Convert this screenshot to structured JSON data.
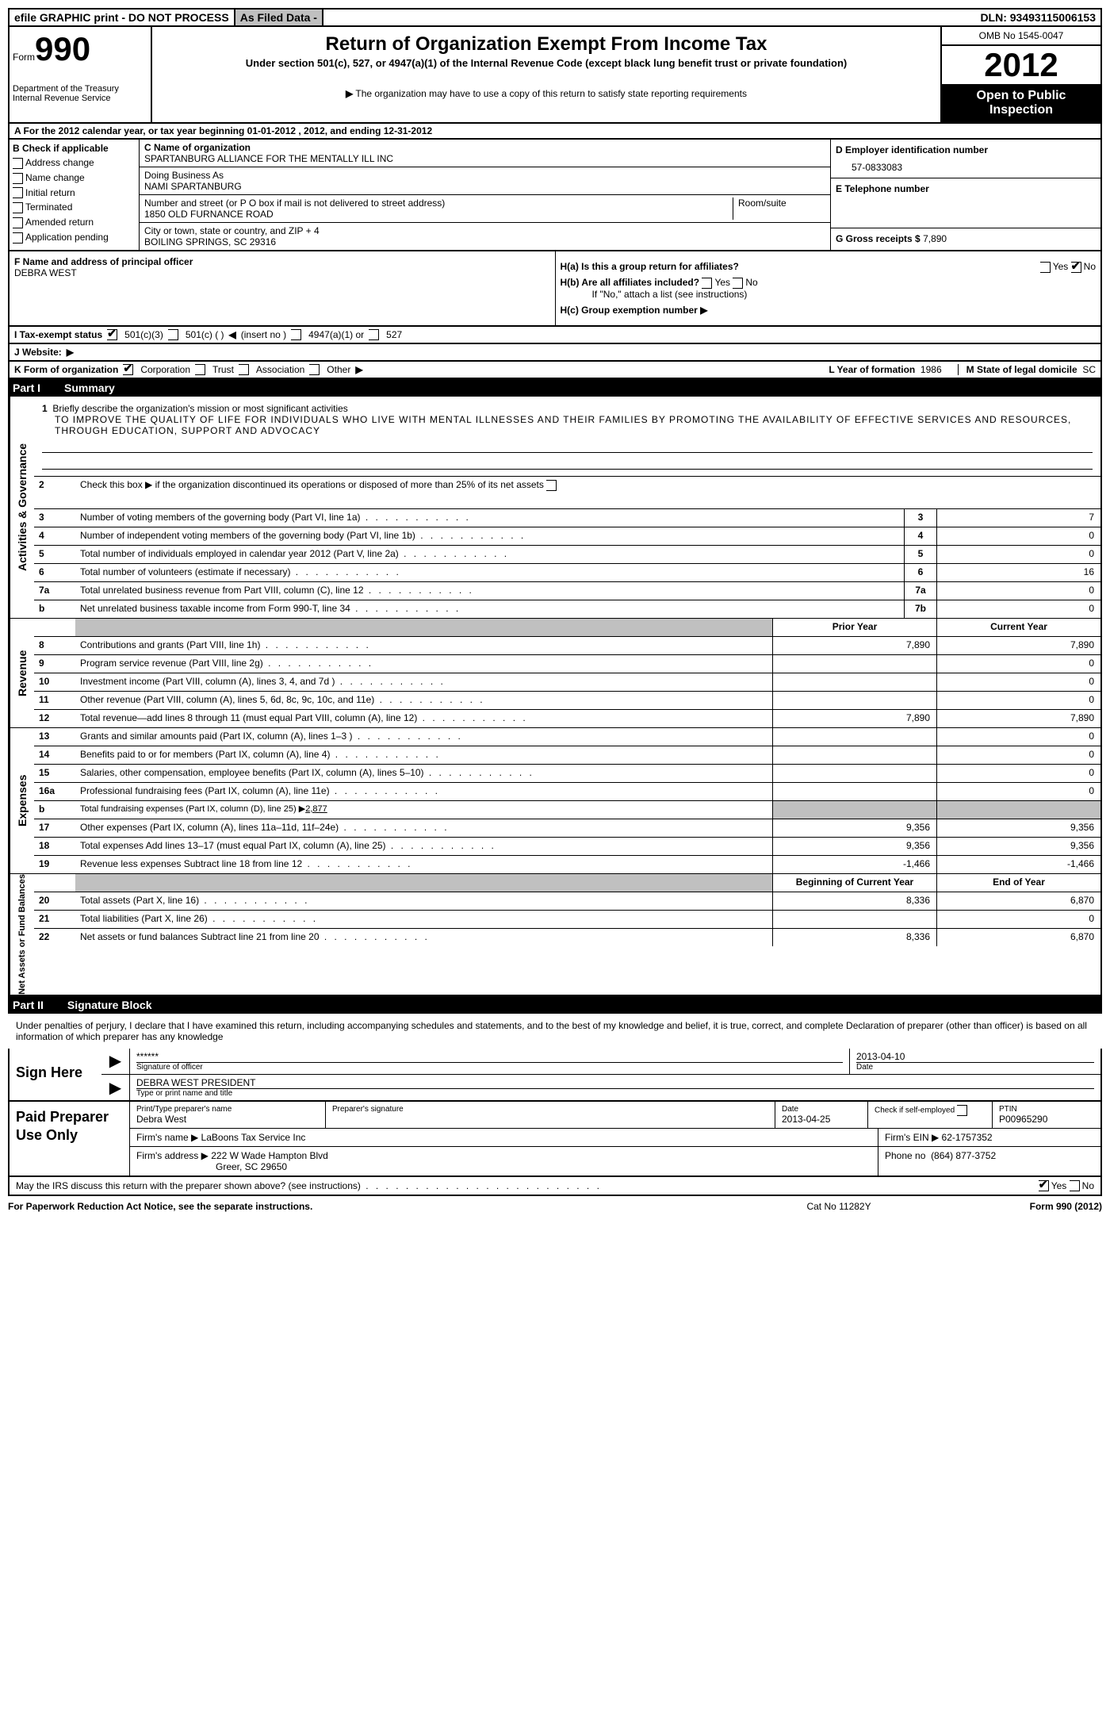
{
  "header": {
    "efile": "efile GRAPHIC print - DO NOT PROCESS",
    "asfiled": "As Filed Data -",
    "dln_label": "DLN:",
    "dln": "93493115006153"
  },
  "form": {
    "label_sm": "Form",
    "num": "990",
    "treasury1": "Department of the Treasury",
    "treasury2": "Internal Revenue Service",
    "title": "Return of Organization Exempt From Income Tax",
    "subtitle": "Under section 501(c), 527, or 4947(a)(1) of the Internal Revenue Code (except black lung benefit trust or private foundation)",
    "notice": "The organization may have to use a copy of this return to satisfy state reporting requirements",
    "omb": "OMB No 1545-0047",
    "year": "2012",
    "open_public": "Open to Public Inspection"
  },
  "line_a": "A  For the 2012 calendar year, or tax year beginning 01-01-2012    , 2012, and ending 12-31-2012",
  "col_b": {
    "label": "B Check if applicable",
    "items": [
      "Address change",
      "Name change",
      "Initial return",
      "Terminated",
      "Amended return",
      "Application pending"
    ]
  },
  "col_c": {
    "name_label": "C Name of organization",
    "name": "SPARTANBURG ALLIANCE FOR THE MENTALLY ILL INC",
    "dba_label": "Doing Business As",
    "dba": "NAMI SPARTANBURG",
    "addr_label": "Number and street (or P O  box if mail is not delivered to street address)",
    "addr": "1850 OLD FURNANCE ROAD",
    "room_label": "Room/suite",
    "city_label": "City or town, state or country, and ZIP + 4",
    "city": "BOILING SPRINGS, SC  29316"
  },
  "col_d": {
    "ein_label": "D Employer identification number",
    "ein": "57-0833083",
    "phone_label": "E Telephone number",
    "gross_label": "G Gross receipts $",
    "gross": "7,890"
  },
  "f": {
    "label": "F   Name and address of principal officer",
    "name": "DEBRA WEST"
  },
  "h": {
    "ha": "H(a)  Is this a group return for affiliates?",
    "hb": "H(b)  Are all affiliates included?",
    "hb_note": "If \"No,\" attach a list  (see instructions)",
    "hc": "H(c)   Group exemption number",
    "yes": "Yes",
    "no": "No"
  },
  "tax_exempt": {
    "label": "I   Tax-exempt status",
    "opt1": "501(c)(3)",
    "opt2": "501(c) (  )",
    "insert": "(insert no )",
    "opt3": "4947(a)(1) or",
    "opt4": "527"
  },
  "website": {
    "label": "J  Website:"
  },
  "kform": {
    "label": "K Form of organization",
    "corp": "Corporation",
    "trust": "Trust",
    "assoc": "Association",
    "other": "Other",
    "year_label": "L Year of formation",
    "year_val": "1986",
    "state_label": "M State of legal domicile",
    "state_val": "SC"
  },
  "part1": {
    "num": "Part I",
    "title": "Summary"
  },
  "mission": {
    "num": "1",
    "label": "Briefly describe the organization's mission or most significant activities",
    "text": "TO IMPROVE THE QUALITY OF LIFE FOR INDIVIDUALS WHO LIVE WITH MENTAL ILLNESSES AND THEIR FAMILIES BY PROMOTING THE AVAILABILITY OF EFFECTIVE SERVICES AND RESOURCES, THROUGH EDUCATION, SUPPORT AND ADVOCACY"
  },
  "line2": {
    "num": "2",
    "text": "Check this box ▶      if the organization discontinued its operations or disposed of more than 25% of its net assets"
  },
  "vert1": "Activities & Governance",
  "vert2": "Revenue",
  "vert3": "Expenses",
  "vert4": "Net Assets or Fund Balances",
  "gov_lines": [
    {
      "num": "3",
      "text": "Number of voting members of the governing body (Part VI, line 1a)",
      "key": "3",
      "val": "7"
    },
    {
      "num": "4",
      "text": "Number of independent voting members of the governing body (Part VI, line 1b)",
      "key": "4",
      "val": "0"
    },
    {
      "num": "5",
      "text": "Total number of individuals employed in calendar year 2012 (Part V, line 2a)",
      "key": "5",
      "val": "0"
    },
    {
      "num": "6",
      "text": "Total number of volunteers (estimate if necessary)",
      "key": "6",
      "val": "16"
    },
    {
      "num": "7a",
      "text": "Total unrelated business revenue from Part VIII, column (C), line 12",
      "key": "7a",
      "val": "0"
    },
    {
      "num": "b",
      "text": "Net unrelated business taxable income from Form 990-T, line 34",
      "key": "7b",
      "val": "0"
    }
  ],
  "col_headers": {
    "prior": "Prior Year",
    "current": "Current Year",
    "begin": "Beginning of Current Year",
    "end": "End of Year"
  },
  "rev_lines": [
    {
      "num": "8",
      "text": "Contributions and grants (Part VIII, line 1h)",
      "v1": "7,890",
      "v2": "7,890"
    },
    {
      "num": "9",
      "text": "Program service revenue (Part VIII, line 2g)",
      "v1": "",
      "v2": "0"
    },
    {
      "num": "10",
      "text": "Investment income (Part VIII, column (A), lines 3, 4, and 7d )",
      "v1": "",
      "v2": "0"
    },
    {
      "num": "11",
      "text": "Other revenue (Part VIII, column (A), lines 5, 6d, 8c, 9c, 10c, and 11e)",
      "v1": "",
      "v2": "0"
    },
    {
      "num": "12",
      "text": "Total revenue—add lines 8 through 11 (must equal Part VIII, column (A), line 12)",
      "v1": "7,890",
      "v2": "7,890"
    }
  ],
  "exp_lines": [
    {
      "num": "13",
      "text": "Grants and similar amounts paid (Part IX, column (A), lines 1–3 )",
      "v1": "",
      "v2": "0"
    },
    {
      "num": "14",
      "text": "Benefits paid to or for members (Part IX, column (A), line 4)",
      "v1": "",
      "v2": "0"
    },
    {
      "num": "15",
      "text": "Salaries, other compensation, employee benefits (Part IX, column (A), lines 5–10)",
      "v1": "",
      "v2": "0"
    },
    {
      "num": "16a",
      "text": "Professional fundraising fees (Part IX, column (A), line 11e)",
      "v1": "",
      "v2": "0"
    },
    {
      "num": "b",
      "text": "Total fundraising expenses (Part IX, column (D), line 25) ▶",
      "extra": "2,877",
      "gray": true
    },
    {
      "num": "17",
      "text": "Other expenses (Part IX, column (A), lines 11a–11d, 11f–24e)",
      "v1": "9,356",
      "v2": "9,356"
    },
    {
      "num": "18",
      "text": "Total expenses  Add lines 13–17 (must equal Part IX, column (A), line 25)",
      "v1": "9,356",
      "v2": "9,356"
    },
    {
      "num": "19",
      "text": "Revenue less expenses  Subtract line 18 from line 12",
      "v1": "-1,466",
      "v2": "-1,466"
    }
  ],
  "net_lines": [
    {
      "num": "20",
      "text": "Total assets (Part X, line 16)",
      "v1": "8,336",
      "v2": "6,870"
    },
    {
      "num": "21",
      "text": "Total liabilities (Part X, line 26)",
      "v1": "",
      "v2": "0"
    },
    {
      "num": "22",
      "text": "Net assets or fund balances  Subtract line 21 from line 20",
      "v1": "8,336",
      "v2": "6,870"
    }
  ],
  "part2": {
    "num": "Part II",
    "title": "Signature Block"
  },
  "sig": {
    "declare": "Under penalties of perjury, I declare that I have examined this return, including accompanying schedules and statements, and to the best of my knowledge and belief, it is true, correct, and complete  Declaration of preparer (other than officer) is based on all information of which preparer has any knowledge",
    "sign_here": "Sign Here",
    "stars": "******",
    "sig_officer": "Signature of officer",
    "date_label": "Date",
    "date": "2013-04-10",
    "name_title": "DEBRA WEST PRESIDENT",
    "type_label": "Type or print name and title"
  },
  "paid": {
    "label": "Paid Preparer Use Only",
    "prep_label": "Print/Type preparer's name",
    "prep_name": "Debra West",
    "prep_sig_label": "Preparer's signature",
    "prep_date_label": "Date",
    "prep_date": "2013-04-25",
    "check_label": "Check         if self-employed",
    "ptin_label": "PTIN",
    "ptin": "P00965290",
    "firm_name_label": "Firm's name   ▶",
    "firm_name": "LaBoons Tax Service Inc",
    "firm_ein_label": "Firm's EIN ▶",
    "firm_ein": "62-1757352",
    "firm_addr_label": "Firm's address ▶",
    "firm_addr1": "222 W Wade Hampton Blvd",
    "firm_addr2": "Greer, SC  29650",
    "phone_label": "Phone no",
    "phone": "(864) 877-3752"
  },
  "discuss": {
    "text": "May the IRS discuss this return with the preparer shown above? (see instructions)",
    "yes": "Yes",
    "no": "No"
  },
  "footer": {
    "left": "For Paperwork Reduction Act Notice, see the separate instructions.",
    "mid": "Cat No  11282Y",
    "right": "Form 990 (2012)"
  },
  "style": {
    "bg": "#ffffff",
    "fg": "#000000",
    "gray": "#c0c0c0",
    "fontsize_body": 12,
    "fontsize_year": 42
  }
}
